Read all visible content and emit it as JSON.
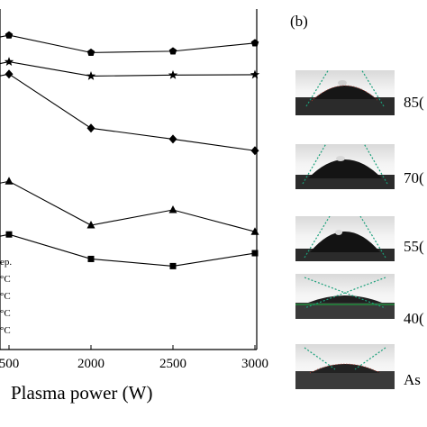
{
  "panel_b": {
    "label": "(b)",
    "photos": [
      {
        "label": "85("
      },
      {
        "label": "70("
      },
      {
        "label": "55("
      },
      {
        "label": "40("
      },
      {
        "label": "As"
      }
    ]
  },
  "colors": {
    "line": "#000000",
    "tangent": "#1aa07a",
    "substrate_edge": "#c0392b",
    "baseline": "#1a9a3a"
  },
  "chart_data": {
    "type": "line",
    "xlabel": "Plasma power (W)",
    "ylabel": "",
    "x_ticks": [
      "500",
      "2000",
      "2500",
      "3000"
    ],
    "xlim": [
      1450,
      3000
    ],
    "ylim": [
      0,
      100
    ],
    "legend_entries": [
      "ep.",
      "°C",
      "°C",
      "°C",
      "°C"
    ],
    "series": [
      {
        "marker": "pentagon",
        "x": [
          1500,
          2000,
          2500,
          3000
        ],
        "y": [
          92.3,
          87.2,
          87.6,
          90.0
        ]
      },
      {
        "marker": "star",
        "x": [
          1500,
          2000,
          2500,
          3000
        ],
        "y": [
          84.5,
          80.3,
          80.6,
          80.7
        ]
      },
      {
        "marker": "diamond",
        "x": [
          1500,
          2000,
          2500,
          3000
        ],
        "y": [
          80.9,
          65.0,
          61.8,
          58.4
        ]
      },
      {
        "marker": "triangle",
        "x": [
          1500,
          2000,
          2500,
          3000
        ],
        "y": [
          49.4,
          36.5,
          41.0,
          34.6
        ]
      },
      {
        "marker": "square",
        "x": [
          1500,
          2000,
          2500,
          3000
        ],
        "y": [
          33.8,
          26.6,
          24.5,
          28.3
        ]
      }
    ]
  }
}
